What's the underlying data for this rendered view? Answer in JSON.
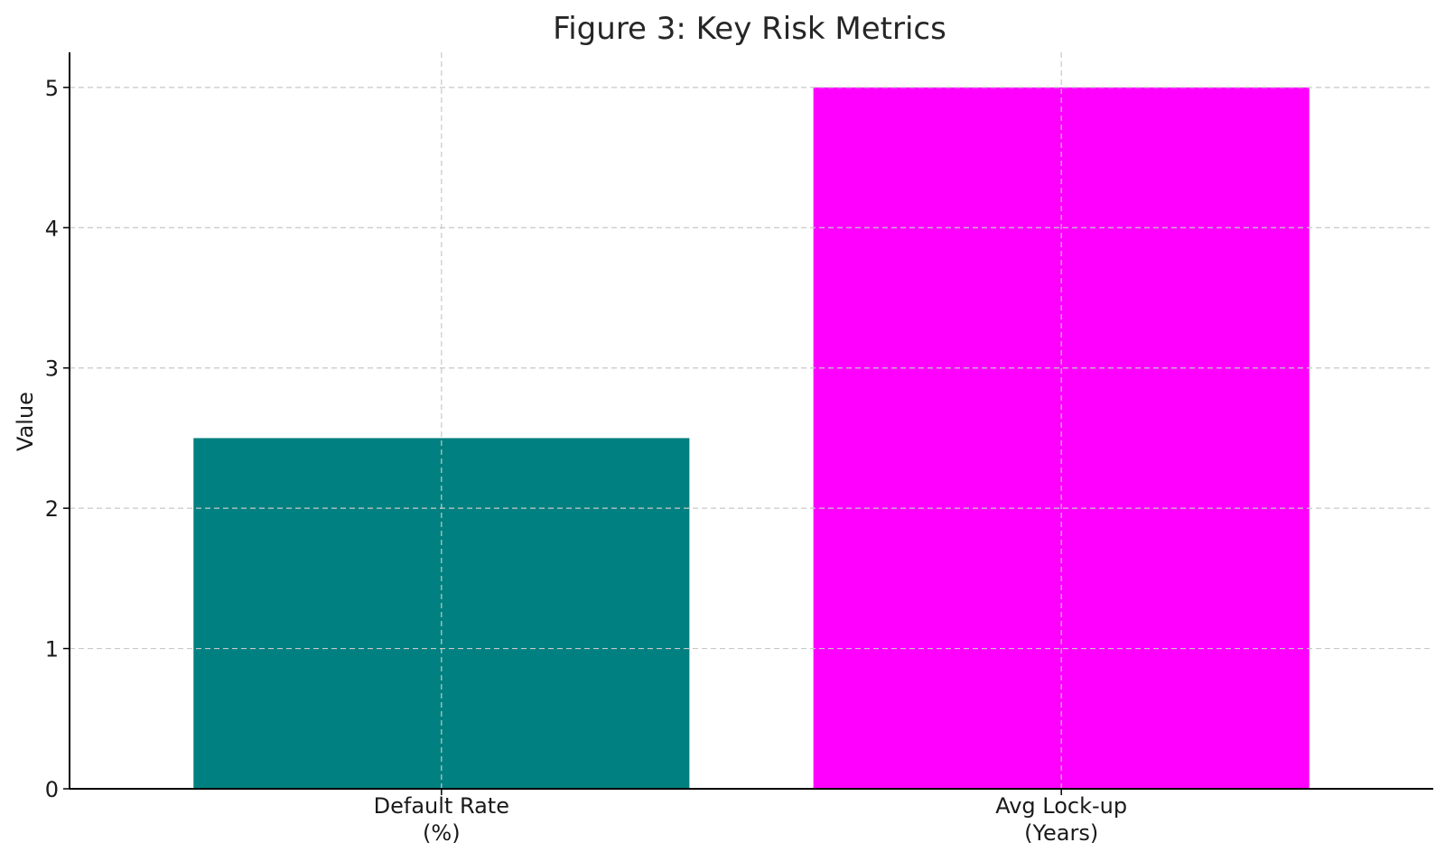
{
  "chart_data": {
    "type": "bar",
    "title": "Figure 3: Key Risk Metrics",
    "xlabel": "",
    "ylabel": "Value",
    "categories": [
      [
        "Default Rate",
        "(%)"
      ],
      [
        "Avg Lock-up",
        "(Years)"
      ]
    ],
    "values": [
      2.5,
      5
    ],
    "colors": [
      "#008080",
      "#ff00ff"
    ],
    "ylim": [
      0,
      5.25
    ],
    "yticks": [
      0,
      1,
      2,
      3,
      4,
      5
    ],
    "grid": true
  }
}
